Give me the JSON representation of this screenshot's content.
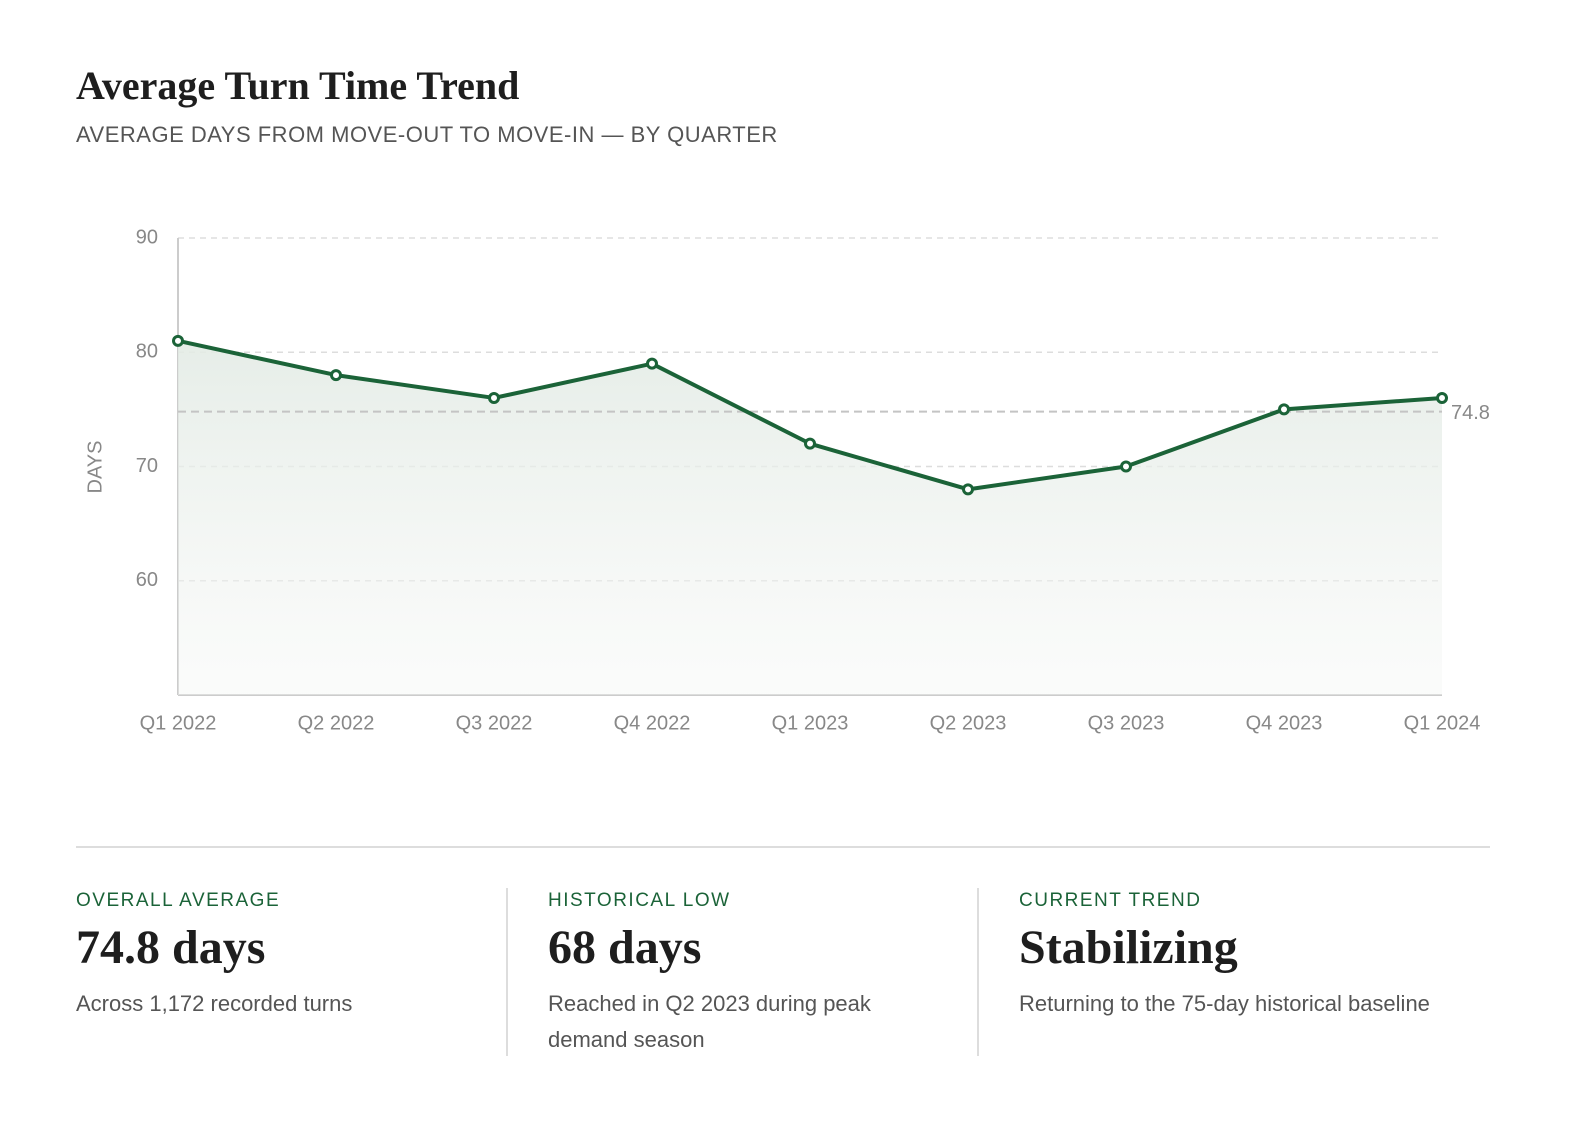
{
  "chart_data": {
    "type": "line",
    "title": "Average Turn Time Trend",
    "subtitle": "AVERAGE DAYS FROM MOVE-OUT TO MOVE-IN — BY QUARTER",
    "y_label": "DAYS",
    "categories": [
      "Q1 2022",
      "Q2 2022",
      "Q3 2022",
      "Q4 2022",
      "Q1 2023",
      "Q2 2023",
      "Q3 2023",
      "Q4 2023",
      "Q1 2024"
    ],
    "values": [
      81,
      78,
      76,
      79,
      72,
      68,
      70,
      75,
      76
    ],
    "color": "#1b6338",
    "average_line": 74.8,
    "ylim": [
      50,
      90
    ],
    "yticks": [
      60,
      70,
      80,
      90
    ],
    "grid": true
  },
  "stats": [
    {
      "label": "OVERALL AVERAGE",
      "value": "74.8 days",
      "note": "Across 1,172 recorded turns"
    },
    {
      "label": "HISTORICAL LOW",
      "value": "68 days",
      "note": "Reached in Q2 2023 during peak demand season"
    },
    {
      "label": "CURRENT TREND",
      "value": "Stabilizing",
      "note": "Returning to the 75-day historical baseline"
    }
  ]
}
